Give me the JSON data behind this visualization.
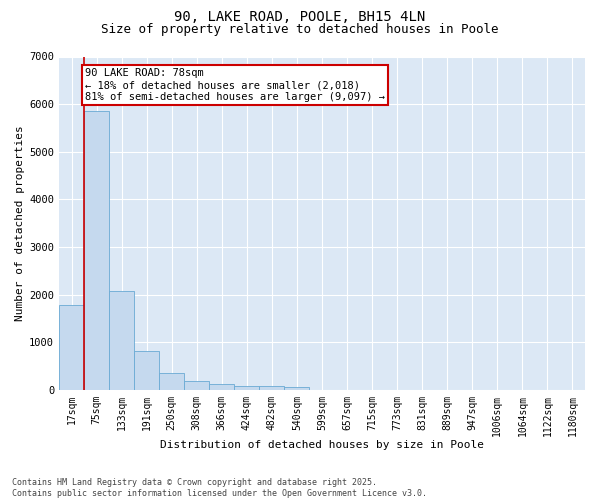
{
  "title1": "90, LAKE ROAD, POOLE, BH15 4LN",
  "title2": "Size of property relative to detached houses in Poole",
  "xlabel": "Distribution of detached houses by size in Poole",
  "ylabel": "Number of detached properties",
  "categories": [
    "17sqm",
    "75sqm",
    "133sqm",
    "191sqm",
    "250sqm",
    "308sqm",
    "366sqm",
    "424sqm",
    "482sqm",
    "540sqm",
    "599sqm",
    "657sqm",
    "715sqm",
    "773sqm",
    "831sqm",
    "889sqm",
    "947sqm",
    "1006sqm",
    "1064sqm",
    "1122sqm",
    "1180sqm"
  ],
  "values": [
    1780,
    5850,
    2080,
    820,
    350,
    190,
    120,
    90,
    80,
    60,
    0,
    0,
    0,
    0,
    0,
    0,
    0,
    0,
    0,
    0,
    0
  ],
  "bar_color": "#c5d9ee",
  "bar_edge_color": "#6aaad4",
  "vline_color": "#cc0000",
  "annotation_text": "90 LAKE ROAD: 78sqm\n← 18% of detached houses are smaller (2,018)\n81% of semi-detached houses are larger (9,097) →",
  "annotation_box_color": "#cc0000",
  "ylim": [
    0,
    7000
  ],
  "yticks": [
    0,
    1000,
    2000,
    3000,
    4000,
    5000,
    6000,
    7000
  ],
  "bg_color": "#dce8f5",
  "grid_color": "#ffffff",
  "footer": "Contains HM Land Registry data © Crown copyright and database right 2025.\nContains public sector information licensed under the Open Government Licence v3.0.",
  "title_fontsize": 10,
  "subtitle_fontsize": 9,
  "tick_fontsize": 7,
  "ylabel_fontsize": 8,
  "xlabel_fontsize": 8,
  "annotation_fontsize": 7.5,
  "footer_fontsize": 6
}
